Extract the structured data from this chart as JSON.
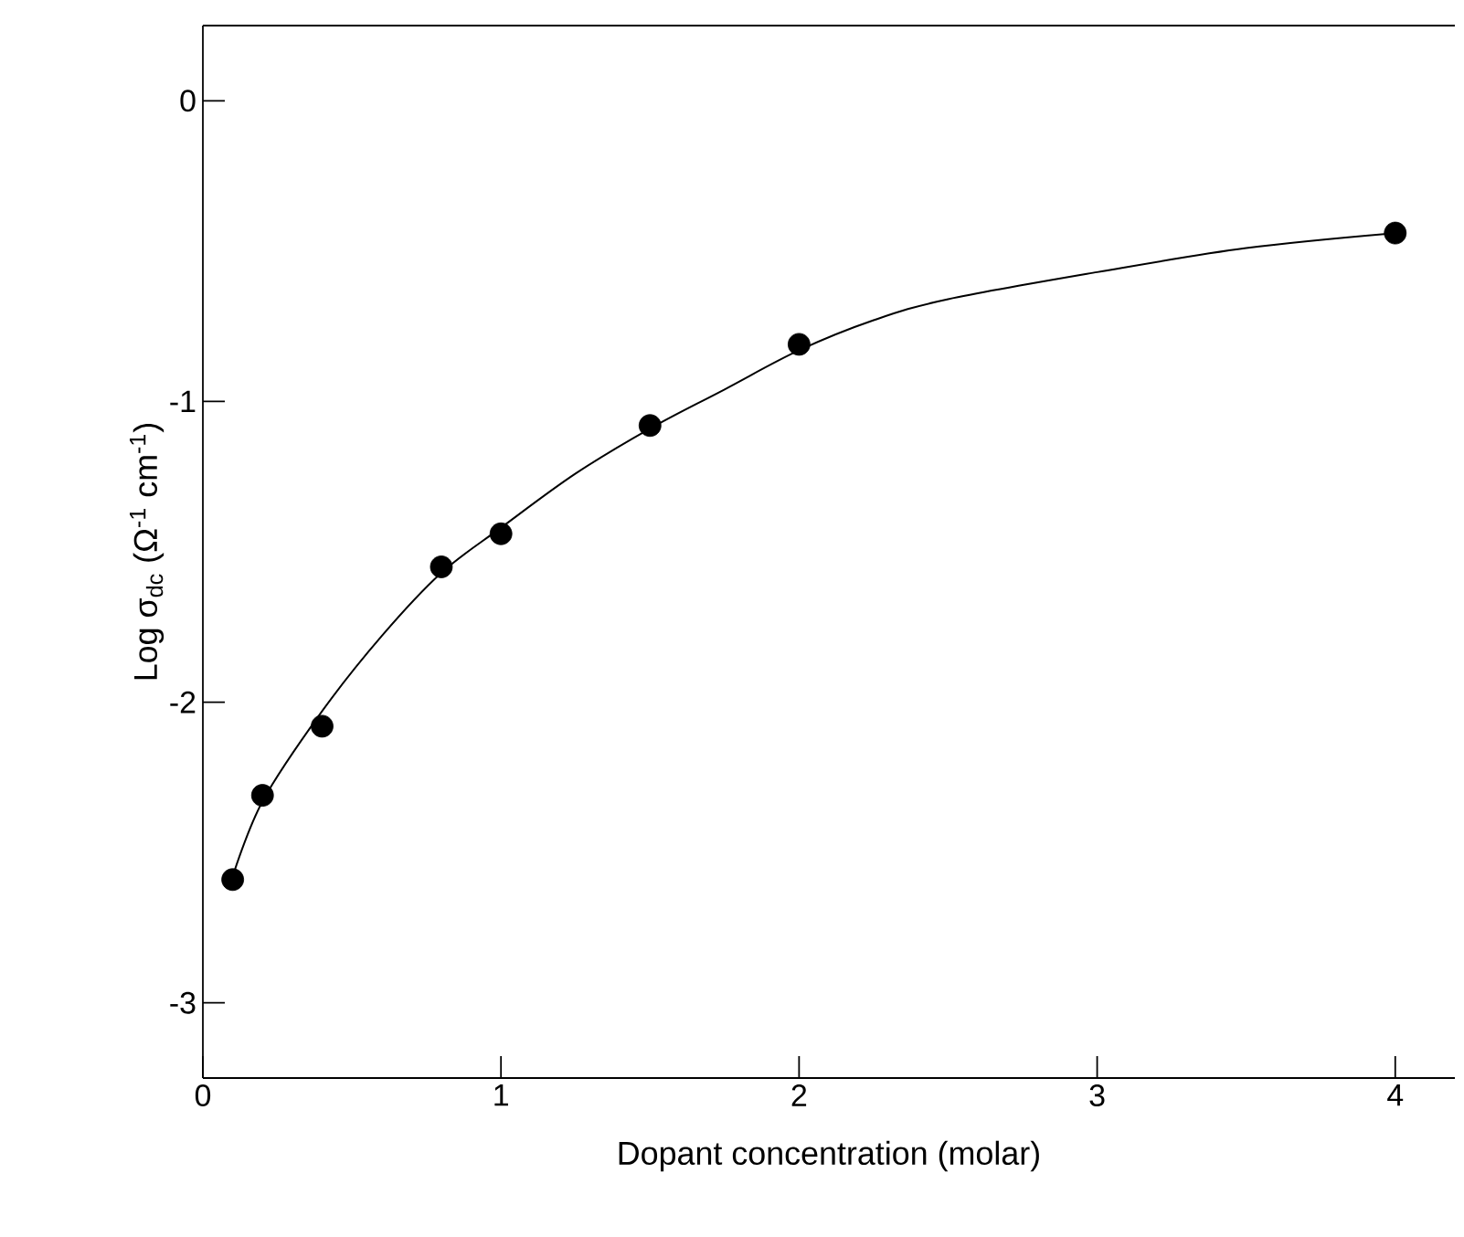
{
  "chart_data": {
    "type": "scatter",
    "xlabel": "Dopant concentration (molar)",
    "ylabel": "Log σ$_{dc}$ (Ω$^{-1}$ cm$^{-1}$)",
    "xlim": [
      0,
      4.2
    ],
    "ylim": [
      -3.25,
      0.25
    ],
    "xticks": [
      0,
      1,
      2,
      3,
      4
    ],
    "yticks": [
      -3,
      -2,
      -1,
      0
    ],
    "series": [
      {
        "marker": "circle",
        "color": "#000000",
        "x": [
          0.1,
          0.2,
          0.4,
          0.8,
          1.0,
          1.5,
          2.0,
          4.0
        ],
        "values": [
          -2.59,
          -2.31,
          -2.08,
          -1.55,
          -1.44,
          -1.08,
          -0.81,
          -0.44
        ]
      },
      {
        "type": "line",
        "marker": "none",
        "color": "#000000",
        "x": [
          0.1,
          0.2,
          0.4,
          0.6,
          0.8,
          1.0,
          1.25,
          1.5,
          1.75,
          2.0,
          2.25,
          2.5,
          3.0,
          3.5,
          4.0
        ],
        "values": [
          -2.58,
          -2.33,
          -2.03,
          -1.78,
          -1.57,
          -1.42,
          -1.24,
          -1.09,
          -0.96,
          -0.83,
          -0.73,
          -0.66,
          -0.57,
          -0.49,
          -0.44
        ]
      }
    ]
  }
}
